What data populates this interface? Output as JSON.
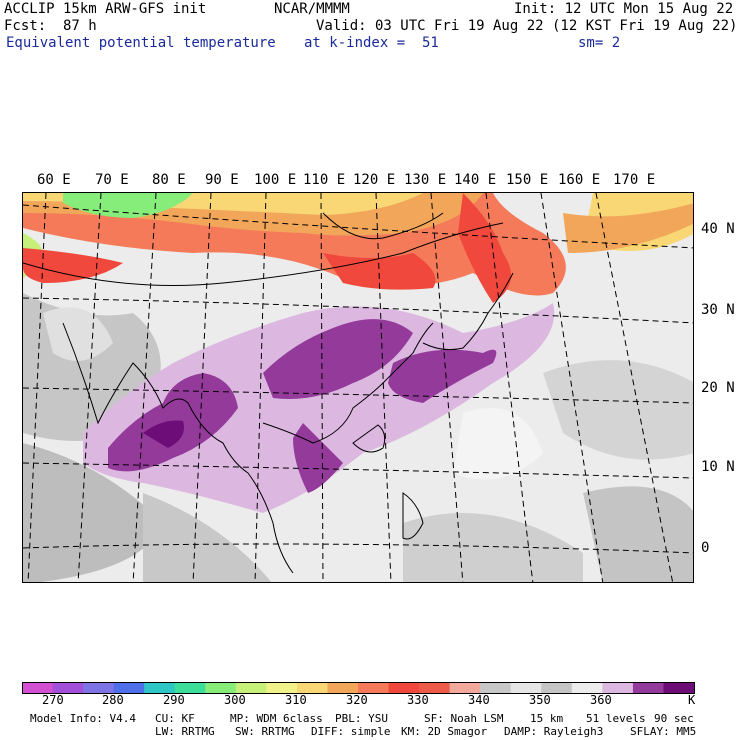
{
  "header": {
    "model": "ACCLIP 15km ARW-GFS init",
    "org": "NCAR/MMMM",
    "init": "Init: 12 UTC Mon 15 Aug 22",
    "fcst_label": "Fcst:",
    "fcst_value": "87 h",
    "valid": "Valid: 03 UTC Fri 19 Aug 22 (12 KST Fri 19 Aug 22)",
    "field": "Equivalent potential temperature",
    "level": "at k-index =  51",
    "smooth": "sm= 2"
  },
  "map": {
    "lon_labels": [
      "60 E",
      "70 E",
      "80 E",
      "90 E",
      "100 E",
      "110 E",
      "120 E",
      "130 E",
      "140 E",
      "150 E",
      "160 E",
      "170 E"
    ],
    "lat_labels": [
      "40 N",
      "30 N",
      "20 N",
      "10 N",
      "0"
    ],
    "icons": [
      "coastline-map-icon"
    ]
  },
  "colorbar": {
    "colors": [
      "#d24fd0",
      "#a24fd9",
      "#7f74e3",
      "#4f6fe9",
      "#2fc6c6",
      "#3cde9a",
      "#86ec7a",
      "#c6f07a",
      "#f2f28a",
      "#f8d774",
      "#f2a65a",
      "#f47a5a",
      "#f0483c",
      "#ec5a4a",
      "#f2a89a",
      "#c8c8c8",
      "#e6e6e6",
      "#c4c4c4",
      "#ededed",
      "#dcb8e0",
      "#933a9a",
      "#6d0d78"
    ],
    "labels": [
      "270",
      "280",
      "290",
      "300",
      "310",
      "320",
      "330",
      "340",
      "350",
      "360"
    ],
    "unit": "K"
  },
  "footer": {
    "line1": [
      "Model Info: V4.4",
      "CU: KF",
      "MP: WDM 6class",
      "PBL: YSU",
      "SF: Noah LSM",
      "15 km",
      "51 levels",
      "90 sec"
    ],
    "line2": [
      "LW: RRTMG",
      "SW: RRTMG",
      "DIFF: simple",
      "KM: 2D Smagor",
      "DAMP: Rayleigh3",
      "SFLAY: MM5"
    ]
  }
}
